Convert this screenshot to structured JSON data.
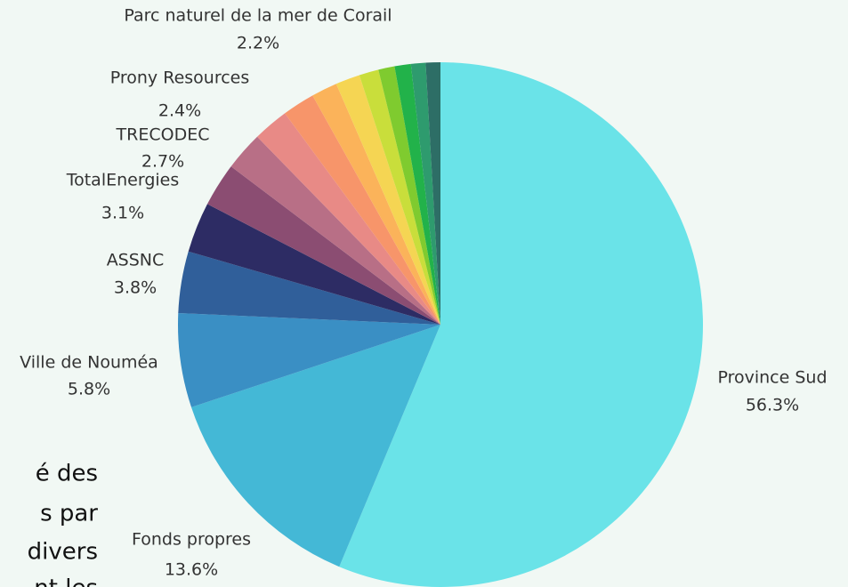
{
  "chart_data": {
    "type": "pie",
    "categories": [
      "Province Sud",
      "Fonds propres",
      "Ville de Nouméa",
      "ASSNC",
      "TotalEnergies",
      "TRECODEC",
      "Prony Resources",
      "Parc naturel de la mer de Corail",
      null,
      null,
      null,
      null,
      null,
      null,
      null,
      null
    ],
    "values": [
      56.3,
      13.6,
      5.8,
      3.8,
      3.1,
      2.7,
      2.4,
      2.2,
      2.0,
      1.6,
      1.5,
      1.2,
      1.0,
      1.0,
      0.9,
      0.9
    ],
    "value_labels": [
      "56.3%",
      "13.6%",
      "5.8%",
      "3.8%",
      "3.1%",
      "2.7%",
      "2.4%",
      "2.2%",
      null,
      null,
      null,
      null,
      null,
      null,
      null,
      null
    ],
    "colors": [
      "#6ae3e8",
      "#44b8d6",
      "#3a8fc4",
      "#305f9a",
      "#2d2c64",
      "#8b4d72",
      "#b86f86",
      "#e88a86",
      "#f7956a",
      "#fbb35a",
      "#f5d553",
      "#c9de3b",
      "#7fcb2f",
      "#22b24a",
      "#2e9b6e",
      "#2d6e66"
    ]
  },
  "background_text": [
    "é des",
    "s par",
    "divers",
    "nt les"
  ]
}
